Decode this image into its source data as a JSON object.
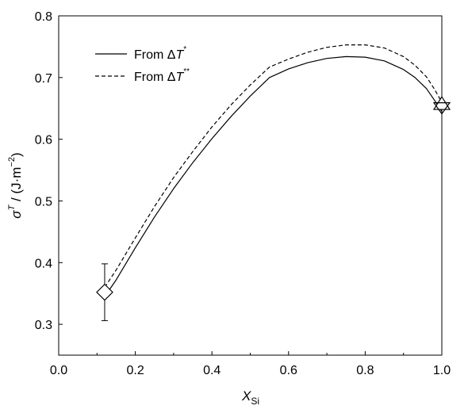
{
  "chart_data": {
    "type": "line",
    "xlim": [
      0.0,
      1.0
    ],
    "ylim": [
      0.25,
      0.8
    ],
    "x_ticks": [
      "0.0",
      "0.2",
      "0.4",
      "0.6",
      "0.8",
      "1.0"
    ],
    "y_ticks": [
      "0.3",
      "0.4",
      "0.5",
      "0.6",
      "0.7",
      "0.8"
    ],
    "xlabel": {
      "main": "X",
      "sub": "Si"
    },
    "ylabel": {
      "symbol": "σ",
      "sup": "T",
      "rest": " / (J·m",
      "unit_sup": "−2",
      "close": ")"
    },
    "legend": {
      "position": "top-left",
      "entries": [
        {
          "prefix": "From Δ",
          "var": "T",
          "sup": "*",
          "style": "solid"
        },
        {
          "prefix": "From Δ",
          "var": "T",
          "sup": "**",
          "style": "dashed"
        }
      ]
    },
    "series": [
      {
        "style": "solid",
        "x": [
          0.12,
          0.15,
          0.2,
          0.25,
          0.3,
          0.35,
          0.4,
          0.45,
          0.5,
          0.55,
          0.6,
          0.65,
          0.7,
          0.75,
          0.8,
          0.85,
          0.9,
          0.93,
          0.96,
          0.98,
          1.0
        ],
        "y": [
          0.345,
          0.372,
          0.424,
          0.474,
          0.52,
          0.562,
          0.601,
          0.637,
          0.67,
          0.7,
          0.714,
          0.724,
          0.731,
          0.734,
          0.733,
          0.727,
          0.713,
          0.7,
          0.682,
          0.664,
          0.645
        ]
      },
      {
        "style": "dashed",
        "x": [
          0.12,
          0.15,
          0.2,
          0.25,
          0.3,
          0.35,
          0.4,
          0.45,
          0.5,
          0.55,
          0.6,
          0.65,
          0.7,
          0.75,
          0.8,
          0.85,
          0.9,
          0.93,
          0.96,
          0.98,
          1.0
        ],
        "y": [
          0.36,
          0.388,
          0.44,
          0.491,
          0.538,
          0.58,
          0.62,
          0.656,
          0.688,
          0.717,
          0.73,
          0.741,
          0.749,
          0.753,
          0.753,
          0.748,
          0.734,
          0.72,
          0.701,
          0.682,
          0.66
        ]
      }
    ],
    "markers": [
      {
        "shape": "diamond",
        "x": 0.12,
        "y": 0.352,
        "err_low": 0.306,
        "err_high": 0.398
      },
      {
        "shape": "triangle-up",
        "x": 1.0,
        "y": 0.656
      },
      {
        "shape": "triangle-down",
        "x": 1.0,
        "y": 0.654
      }
    ]
  }
}
